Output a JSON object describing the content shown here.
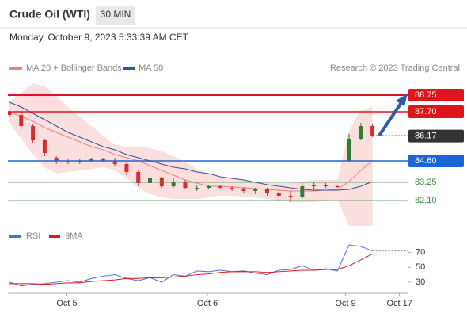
{
  "chart_data": {
    "type": "candlestick",
    "title": "Crude Oil (WTI)",
    "interval": "30 MIN",
    "timestamp": "Monday, October 9, 2023 5:33:39 AM CET",
    "legend": [
      "MA 20 + Bollinger Bands",
      "MA 50"
    ],
    "legend_colors": [
      "#f08080",
      "#2f5597"
    ],
    "credit": "Research © 2023 Trading Central",
    "xlim": [
      0,
      34
    ],
    "xticks": [
      {
        "value": 4.9,
        "label": "Oct 5"
      },
      {
        "value": 16.9,
        "label": "Oct 6"
      },
      {
        "value": 28.7,
        "label": "Oct 9"
      },
      {
        "value": 33.3,
        "label": "Oct 17"
      }
    ],
    "ylim": [
      80.5,
      89.75
    ],
    "up_color": "#2e7d32",
    "down_color": "#d32f2f",
    "candles": [
      [
        87.7,
        87.8,
        87.4,
        87.5
      ],
      [
        87.5,
        87.6,
        86.6,
        86.8
      ],
      [
        86.8,
        86.9,
        85.7,
        85.9
      ],
      [
        85.9,
        86.0,
        84.9,
        85.1
      ],
      [
        84.8,
        84.9,
        84.4,
        84.6
      ],
      [
        84.6,
        84.7,
        84.4,
        84.5
      ],
      [
        84.5,
        84.7,
        84.4,
        84.6
      ],
      [
        84.6,
        84.8,
        84.5,
        84.7
      ],
      [
        84.7,
        84.8,
        84.5,
        84.6
      ],
      [
        84.6,
        84.8,
        84.3,
        84.4
      ],
      [
        84.4,
        84.5,
        83.7,
        83.9
      ],
      [
        83.9,
        84.0,
        83.0,
        83.2
      ],
      [
        83.2,
        83.7,
        83.1,
        83.5
      ],
      [
        83.5,
        83.6,
        82.9,
        83.0
      ],
      [
        83.0,
        83.5,
        82.9,
        83.3
      ],
      [
        83.3,
        83.4,
        82.8,
        82.9
      ],
      [
        82.9,
        83.1,
        82.7,
        82.9
      ],
      [
        82.9,
        83.1,
        82.8,
        83.0
      ],
      [
        83.0,
        83.1,
        82.8,
        82.9
      ],
      [
        82.9,
        83.0,
        82.7,
        82.8
      ],
      [
        82.8,
        82.95,
        82.6,
        82.7
      ],
      [
        82.7,
        82.9,
        82.5,
        82.8
      ],
      [
        82.8,
        82.9,
        82.4,
        82.6
      ],
      [
        82.6,
        82.8,
        82.1,
        82.4
      ],
      [
        82.4,
        82.7,
        82.0,
        82.3
      ],
      [
        82.3,
        83.2,
        82.2,
        83.0
      ],
      [
        83.0,
        83.3,
        82.8,
        83.1
      ],
      [
        83.1,
        83.2,
        82.9,
        83.0
      ],
      [
        83.0,
        83.1,
        82.9,
        82.95
      ],
      [
        84.6,
        86.3,
        84.5,
        86.0
      ],
      [
        86.0,
        87.0,
        85.9,
        86.8
      ],
      [
        86.8,
        86.9,
        86.1,
        86.2
      ]
    ],
    "ma20": [
      87.7,
      87.4,
      87.1,
      86.7,
      86.4,
      86.1,
      85.8,
      85.5,
      85.3,
      85.0,
      84.8,
      84.6,
      84.3,
      84.0,
      83.7,
      83.4,
      83.2,
      83.0,
      83.0,
      82.95,
      82.9,
      82.85,
      82.8,
      82.75,
      82.7,
      82.7,
      82.7,
      82.75,
      82.8,
      83.3,
      84.0,
      84.6
    ],
    "ma50": [
      88.3,
      88.0,
      87.6,
      87.2,
      86.8,
      86.4,
      86.1,
      85.8,
      85.5,
      85.3,
      85.0,
      84.8,
      84.6,
      84.4,
      84.2,
      84.1,
      83.9,
      83.8,
      83.6,
      83.5,
      83.4,
      83.25,
      83.1,
      83.0,
      82.9,
      82.8,
      82.75,
      82.75,
      82.75,
      82.8,
      83.0,
      83.3
    ],
    "bb_upper": [
      88.3,
      88.9,
      89.5,
      89.3,
      88.7,
      88.0,
      87.4,
      86.8,
      86.2,
      85.6,
      85.5,
      85.5,
      85.4,
      85.2,
      84.9,
      84.5,
      84.1,
      83.8,
      83.6,
      83.5,
      83.4,
      83.3,
      83.2,
      83.2,
      83.2,
      83.3,
      83.4,
      83.4,
      83.4,
      86.5,
      87.8,
      88.0
    ],
    "bb_lower": [
      87.0,
      86.0,
      85.0,
      84.2,
      83.8,
      83.9,
      84.0,
      84.1,
      84.2,
      84.0,
      83.5,
      82.9,
      82.5,
      82.3,
      82.2,
      82.2,
      82.2,
      82.3,
      82.4,
      82.4,
      82.35,
      82.3,
      82.2,
      82.1,
      82.0,
      82.0,
      82.0,
      82.1,
      82.2,
      80.5,
      79.9,
      80.3
    ],
    "levels": [
      {
        "value": 88.75,
        "label": "88.75",
        "color": "#e0141e",
        "boxed": true
      },
      {
        "value": 87.7,
        "label": "87.70",
        "color": "#e0141e",
        "boxed": true
      },
      {
        "value": 86.17,
        "label": "86.17",
        "color": "#333333",
        "boxed": true
      },
      {
        "value": 84.6,
        "label": "84.60",
        "color": "#1a66d9",
        "boxed": true
      },
      {
        "value": 83.25,
        "label": "83.25",
        "color": "#3a8a3a",
        "boxed": false
      },
      {
        "value": 82.1,
        "label": "82.10",
        "color": "#3a8a3a",
        "boxed": false
      }
    ],
    "rsi": {
      "legend": [
        "RSI",
        "9MA"
      ],
      "colors": [
        "#4a6fdc",
        "#e0141e"
      ],
      "ylim": [
        15,
        95
      ],
      "yticks": [
        30,
        50,
        70
      ],
      "values": [
        30,
        25,
        27,
        28,
        30,
        32,
        30,
        35,
        38,
        40,
        35,
        32,
        36,
        30,
        40,
        38,
        45,
        44,
        46,
        44,
        45,
        42,
        40,
        46,
        47,
        52,
        46,
        48,
        45,
        80,
        78,
        72
      ],
      "ma": [
        28,
        28,
        28,
        27,
        28,
        29,
        29,
        31,
        32,
        33,
        35,
        35,
        36,
        36,
        37,
        38,
        40,
        41,
        43,
        44,
        44,
        44,
        43,
        44,
        45,
        46,
        46,
        47,
        47,
        52,
        60,
        68
      ]
    }
  }
}
